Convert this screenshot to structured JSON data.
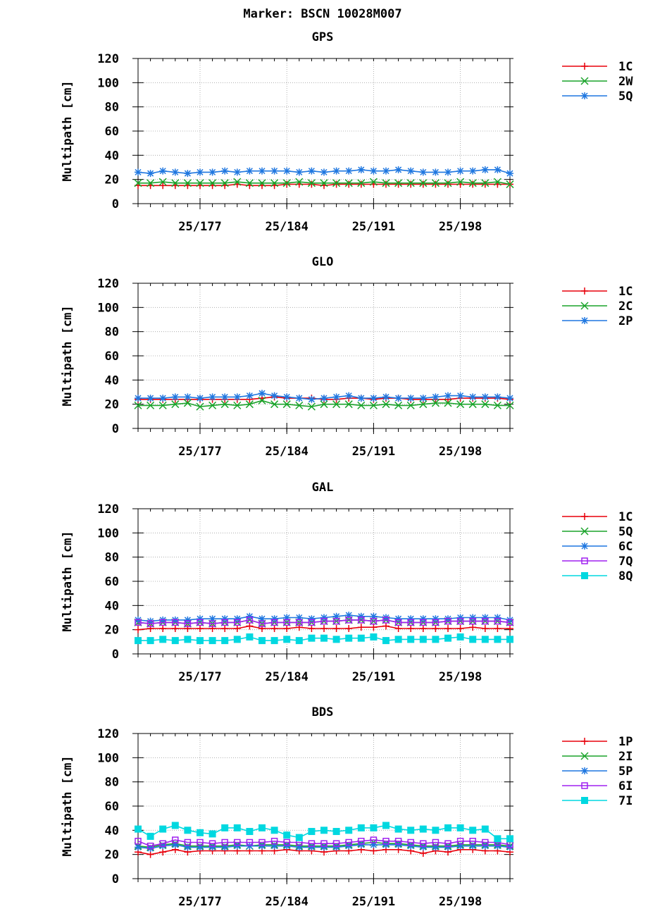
{
  "title": "Marker: BSCN 10028M007",
  "chart_data": [
    {
      "type": "line",
      "title": "GPS",
      "ylabel": "Multipath [cm]",
      "ylim": [
        0,
        120
      ],
      "yticks": [
        0,
        20,
        40,
        60,
        80,
        100,
        120
      ],
      "xlim": [
        172,
        202
      ],
      "xticks": [
        {
          "value": 177,
          "label": "25/177"
        },
        {
          "value": 184,
          "label": "25/184"
        },
        {
          "value": 191,
          "label": "25/191"
        },
        {
          "value": 198,
          "label": "25/198"
        }
      ],
      "grid": true,
      "legend": "right",
      "x": [
        172,
        173,
        174,
        175,
        176,
        177,
        178,
        179,
        180,
        181,
        182,
        183,
        184,
        185,
        186,
        187,
        188,
        189,
        190,
        191,
        192,
        193,
        194,
        195,
        196,
        197,
        198,
        199,
        200,
        201,
        202
      ],
      "series": [
        {
          "name": "1C",
          "color": "#e8000b",
          "marker": "plus",
          "values": [
            15,
            15,
            15,
            15,
            15,
            15,
            15,
            15,
            16,
            15,
            15,
            15,
            16,
            16,
            16,
            15,
            16,
            16,
            16,
            16,
            16,
            16,
            16,
            16,
            16,
            16,
            16,
            16,
            16,
            16,
            16
          ]
        },
        {
          "name": "2W",
          "color": "#1aa32a",
          "marker": "x",
          "values": [
            17,
            17,
            18,
            17,
            17,
            17,
            17,
            17,
            18,
            17,
            17,
            17,
            17,
            18,
            17,
            17,
            17,
            17,
            17,
            18,
            17,
            17,
            17,
            17,
            17,
            17,
            18,
            17,
            17,
            18,
            16
          ]
        },
        {
          "name": "5Q",
          "color": "#1f77e0",
          "marker": "star",
          "values": [
            26,
            25,
            27,
            26,
            25,
            26,
            26,
            27,
            26,
            27,
            27,
            27,
            27,
            26,
            27,
            26,
            27,
            27,
            28,
            27,
            27,
            28,
            27,
            26,
            26,
            26,
            27,
            27,
            28,
            28,
            25
          ]
        }
      ]
    },
    {
      "type": "line",
      "title": "GLO",
      "ylabel": "Multipath [cm]",
      "ylim": [
        0,
        120
      ],
      "yticks": [
        0,
        20,
        40,
        60,
        80,
        100,
        120
      ],
      "xlim": [
        172,
        202
      ],
      "xticks": [
        {
          "value": 177,
          "label": "25/177"
        },
        {
          "value": 184,
          "label": "25/184"
        },
        {
          "value": 191,
          "label": "25/191"
        },
        {
          "value": 198,
          "label": "25/198"
        }
      ],
      "grid": true,
      "legend": "right",
      "x": [
        172,
        173,
        174,
        175,
        176,
        177,
        178,
        179,
        180,
        181,
        182,
        183,
        184,
        185,
        186,
        187,
        188,
        189,
        190,
        191,
        192,
        193,
        194,
        195,
        196,
        197,
        198,
        199,
        200,
        201,
        202
      ],
      "series": [
        {
          "name": "1C",
          "color": "#e8000b",
          "marker": "plus",
          "values": [
            24,
            24,
            24,
            24,
            24,
            24,
            24,
            24,
            24,
            24,
            25,
            26,
            25,
            25,
            25,
            24,
            24,
            25,
            25,
            24,
            25,
            25,
            24,
            24,
            24,
            24,
            25,
            25,
            25,
            25,
            24
          ]
        },
        {
          "name": "2C",
          "color": "#1aa32a",
          "marker": "x",
          "values": [
            19,
            19,
            19,
            20,
            21,
            18,
            19,
            20,
            19,
            20,
            23,
            20,
            20,
            19,
            18,
            20,
            20,
            20,
            19,
            19,
            20,
            19,
            19,
            20,
            21,
            21,
            20,
            20,
            20,
            19,
            19
          ]
        },
        {
          "name": "2P",
          "color": "#1f77e0",
          "marker": "star",
          "values": [
            25,
            25,
            25,
            26,
            26,
            25,
            26,
            26,
            26,
            27,
            29,
            27,
            26,
            25,
            24,
            25,
            26,
            27,
            25,
            25,
            26,
            25,
            25,
            25,
            26,
            27,
            27,
            26,
            26,
            26,
            25
          ]
        }
      ]
    },
    {
      "type": "line",
      "title": "GAL",
      "ylabel": "Multipath [cm]",
      "ylim": [
        0,
        120
      ],
      "yticks": [
        0,
        20,
        40,
        60,
        80,
        100,
        120
      ],
      "xlim": [
        172,
        202
      ],
      "xticks": [
        {
          "value": 177,
          "label": "25/177"
        },
        {
          "value": 184,
          "label": "25/184"
        },
        {
          "value": 191,
          "label": "25/191"
        },
        {
          "value": 198,
          "label": "25/198"
        }
      ],
      "grid": true,
      "legend": "right",
      "x": [
        172,
        173,
        174,
        175,
        176,
        177,
        178,
        179,
        180,
        181,
        182,
        183,
        184,
        185,
        186,
        187,
        188,
        189,
        190,
        191,
        192,
        193,
        194,
        195,
        196,
        197,
        198,
        199,
        200,
        201,
        202
      ],
      "series": [
        {
          "name": "1C",
          "color": "#e8000b",
          "marker": "plus",
          "values": [
            20,
            21,
            21,
            21,
            21,
            21,
            21,
            21,
            21,
            23,
            21,
            21,
            21,
            22,
            21,
            21,
            21,
            21,
            22,
            22,
            23,
            21,
            21,
            21,
            21,
            21,
            21,
            22,
            21,
            21,
            21
          ]
        },
        {
          "name": "5Q",
          "color": "#1aa32a",
          "marker": "x",
          "values": [
            26,
            25,
            26,
            26,
            25,
            26,
            25,
            26,
            26,
            28,
            25,
            26,
            26,
            26,
            26,
            27,
            27,
            28,
            28,
            27,
            28,
            26,
            26,
            26,
            26,
            27,
            27,
            27,
            27,
            27,
            26
          ]
        },
        {
          "name": "6C",
          "color": "#1f77e0",
          "marker": "star",
          "values": [
            28,
            27,
            28,
            28,
            28,
            29,
            29,
            29,
            29,
            31,
            29,
            29,
            30,
            30,
            29,
            30,
            31,
            32,
            31,
            31,
            30,
            29,
            29,
            29,
            29,
            29,
            30,
            30,
            30,
            30,
            28
          ]
        },
        {
          "name": "7Q",
          "color": "#a020f0",
          "marker": "square",
          "values": [
            26,
            25,
            26,
            26,
            25,
            26,
            25,
            26,
            26,
            28,
            25,
            26,
            26,
            26,
            26,
            27,
            27,
            28,
            28,
            27,
            28,
            26,
            26,
            26,
            26,
            27,
            27,
            27,
            27,
            27,
            26
          ]
        },
        {
          "name": "8Q",
          "color": "#00d8e0",
          "marker": "filled-square",
          "values": [
            11,
            11,
            12,
            11,
            12,
            11,
            11,
            11,
            12,
            14,
            11,
            11,
            12,
            11,
            13,
            13,
            12,
            13,
            13,
            14,
            11,
            12,
            12,
            12,
            12,
            13,
            14,
            12,
            12,
            12,
            12
          ]
        }
      ]
    },
    {
      "type": "line",
      "title": "BDS",
      "ylabel": "Multipath [cm]",
      "ylim": [
        0,
        120
      ],
      "yticks": [
        0,
        20,
        40,
        60,
        80,
        100,
        120
      ],
      "xlim": [
        172,
        202
      ],
      "xticks": [
        {
          "value": 177,
          "label": "25/177"
        },
        {
          "value": 184,
          "label": "25/184"
        },
        {
          "value": 191,
          "label": "25/191"
        },
        {
          "value": 198,
          "label": "25/198"
        }
      ],
      "grid": true,
      "legend": "right",
      "x": [
        172,
        173,
        174,
        175,
        176,
        177,
        178,
        179,
        180,
        181,
        182,
        183,
        184,
        185,
        186,
        187,
        188,
        189,
        190,
        191,
        192,
        193,
        194,
        195,
        196,
        197,
        198,
        199,
        200,
        201,
        202
      ],
      "series": [
        {
          "name": "1P",
          "color": "#e8000b",
          "marker": "plus",
          "values": [
            22,
            20,
            22,
            24,
            22,
            23,
            23,
            23,
            23,
            23,
            23,
            23,
            24,
            23,
            23,
            22,
            23,
            23,
            24,
            23,
            24,
            24,
            23,
            21,
            23,
            22,
            24,
            24,
            23,
            23,
            22
          ]
        },
        {
          "name": "2I",
          "color": "#1aa32a",
          "marker": "x",
          "values": [
            27,
            26,
            28,
            29,
            27,
            27,
            27,
            27,
            28,
            27,
            28,
            28,
            28,
            27,
            27,
            27,
            27,
            28,
            29,
            30,
            29,
            29,
            28,
            27,
            27,
            27,
            28,
            28,
            28,
            28,
            27
          ]
        },
        {
          "name": "5P",
          "color": "#1f77e0",
          "marker": "star",
          "values": [
            26,
            25,
            27,
            28,
            26,
            26,
            26,
            26,
            27,
            27,
            27,
            27,
            27,
            26,
            26,
            26,
            26,
            27,
            28,
            28,
            28,
            28,
            27,
            26,
            26,
            26,
            27,
            27,
            27,
            27,
            26
          ]
        },
        {
          "name": "6I",
          "color": "#a020f0",
          "marker": "square",
          "values": [
            31,
            27,
            29,
            32,
            30,
            30,
            29,
            30,
            30,
            30,
            30,
            31,
            30,
            30,
            29,
            29,
            29,
            30,
            31,
            32,
            31,
            31,
            30,
            29,
            30,
            29,
            31,
            31,
            30,
            30,
            28
          ]
        },
        {
          "name": "7I",
          "color": "#00d8e0",
          "marker": "filled-square",
          "values": [
            41,
            35,
            41,
            44,
            40,
            38,
            37,
            42,
            42,
            39,
            42,
            40,
            36,
            34,
            39,
            40,
            39,
            40,
            42,
            42,
            44,
            41,
            40,
            41,
            40,
            42,
            42,
            40,
            41,
            33,
            33
          ]
        }
      ]
    }
  ]
}
